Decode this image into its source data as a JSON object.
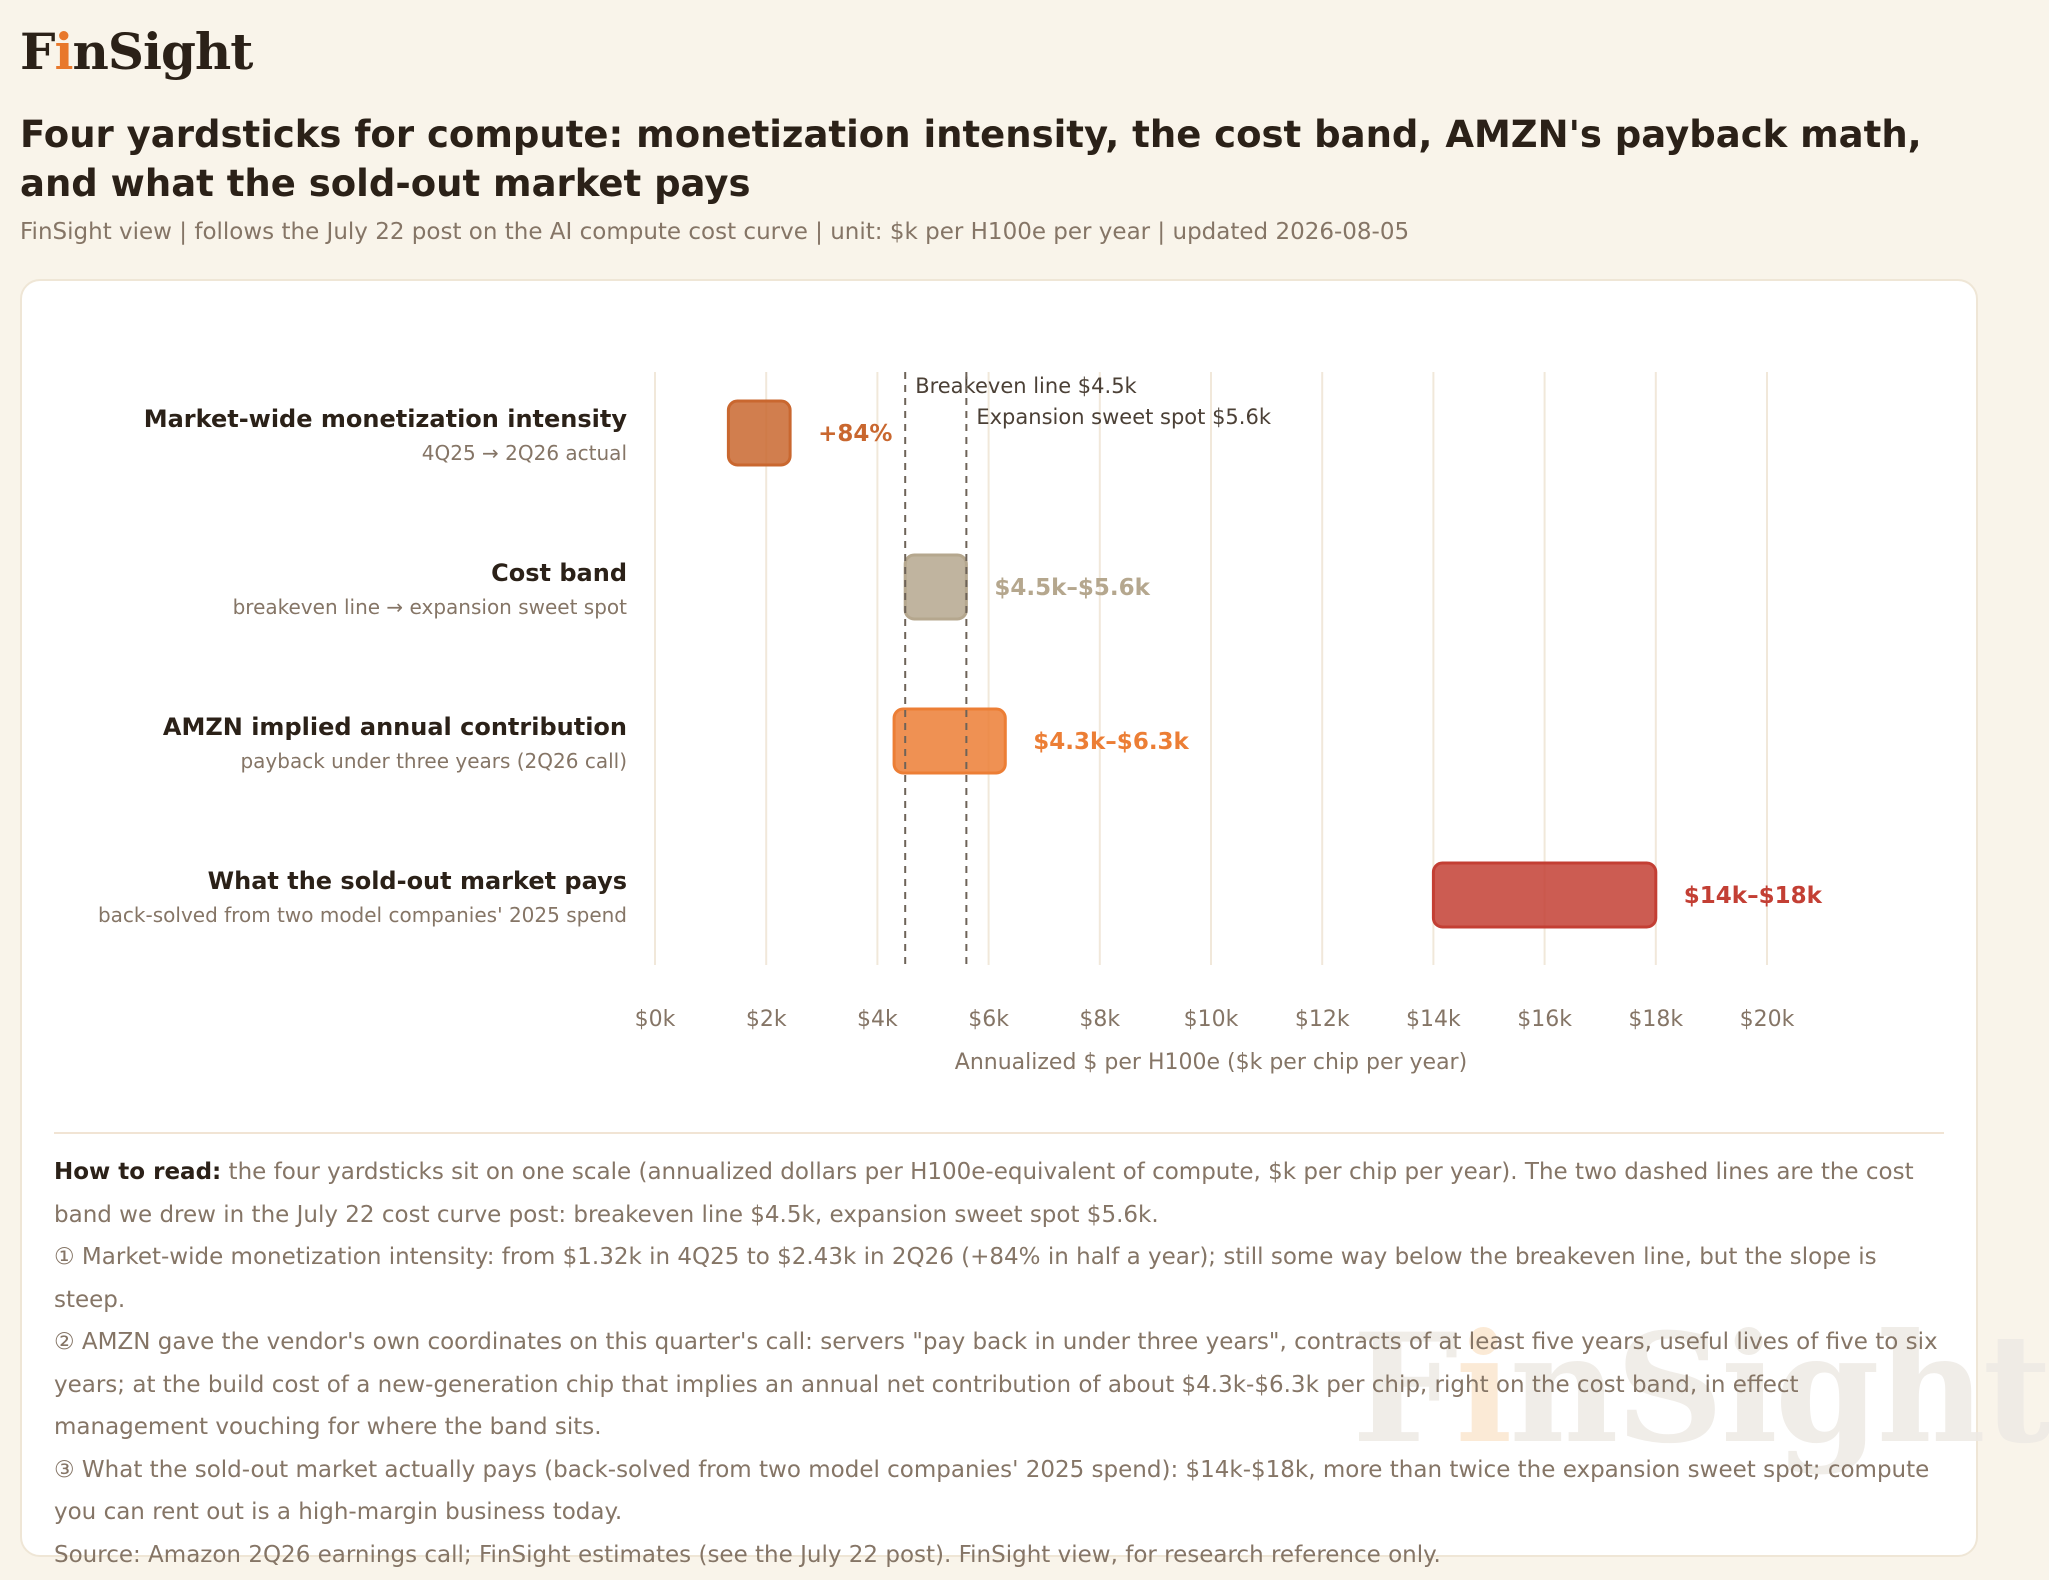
{
  "brand": {
    "name_prefix": "F",
    "name_accent": "i",
    "name_suffix": "nSight"
  },
  "title": "Four yardsticks for compute: monetization intensity, the cost band, AMZN's payback math, and what the sold-out market pays",
  "subtitle": "FinSight view | follows the July 22 post on the AI compute cost curve | unit: $k per H100e per year | updated 2026-08-05",
  "colors": {
    "background": "#f9f4ea",
    "monetization": "#c9672f",
    "cost_band": "#b5a78e",
    "amzn": "#ec7e35",
    "market": "#c33f34",
    "reference_line": "#6e6358"
  },
  "chart_data": {
    "type": "bar",
    "orientation": "horizontal-range",
    "xlabel": "Annualized $ per H100e ($k per chip per year)",
    "xlim": [
      0,
      20
    ],
    "xticks": [
      0,
      2,
      4,
      6,
      8,
      10,
      12,
      14,
      16,
      18,
      20
    ],
    "xtick_labels": [
      "$0k",
      "$2k",
      "$4k",
      "$6k",
      "$8k",
      "$10k",
      "$12k",
      "$14k",
      "$16k",
      "$18k",
      "$20k"
    ],
    "grid": "vertical",
    "reference_lines": [
      {
        "value": 4.5,
        "label": "Breakeven line $4.5k"
      },
      {
        "value": 5.6,
        "label": "Expansion sweet spot $5.6k"
      }
    ],
    "bars": [
      {
        "name": "Market-wide monetization intensity",
        "sub": "4Q25 → 2Q26 actual",
        "start": 1.32,
        "end": 2.43,
        "label": "+84%",
        "color": "#c9672f"
      },
      {
        "name": "Cost band",
        "sub": "breakeven line → expansion sweet spot",
        "start": 4.5,
        "end": 5.6,
        "label": "$4.5k–$5.6k",
        "color": "#b5a78e"
      },
      {
        "name": "AMZN implied annual contribution",
        "sub": "payback under three years (2Q26 call)",
        "start": 4.3,
        "end": 6.3,
        "label": "$4.3k–$6.3k",
        "color": "#ec7e35"
      },
      {
        "name": "What the sold-out market pays",
        "sub": "back-solved from two model companies' 2025 spend",
        "start": 14,
        "end": 18,
        "label": "$14k–$18k",
        "color": "#c33f34"
      }
    ]
  },
  "notes": {
    "lead": "How to read:",
    "intro": " the four yardsticks sit on one scale (annualized dollars per H100e-equivalent of compute, $k per chip per year). The two dashed lines are the cost band we drew in the July 22 cost curve post: breakeven line $4.5k, expansion sweet spot $5.6k.",
    "p1": "① Market-wide monetization intensity: from $1.32k in 4Q25 to $2.43k in 2Q26 (+84% in half a year); still some way below the breakeven line, but the slope is steep.",
    "p2": "② AMZN gave the vendor's own coordinates on this quarter's call: servers \"pay back in under three years\", contracts of at least five years, useful lives of five to six years; at the build cost of a new-generation chip that implies an annual net contribution of about $4.3k-$6.3k per chip, right on the cost band, in effect management vouching for where the band sits.",
    "p3": "③ What the sold-out market actually pays (back-solved from two model companies' 2025 spend): $14k-$18k, more than twice the expansion sweet spot; compute you can rent out is a high-margin business today.",
    "source": "Source: Amazon 2Q26 earnings call; FinSight estimates (see the July 22 post). FinSight view, for research reference only."
  }
}
